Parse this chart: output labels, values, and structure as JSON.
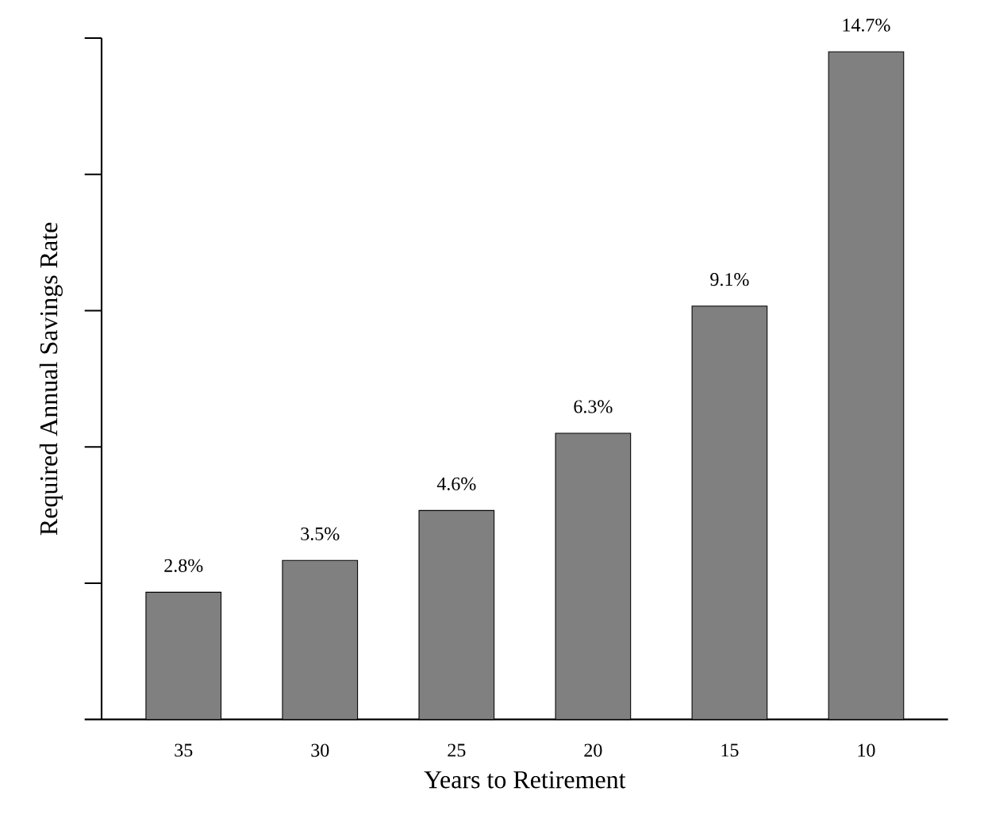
{
  "chart_data": {
    "type": "bar",
    "xlabel": "Years to Retirement",
    "ylabel": "Required Annual Savings Rate",
    "categories": [
      "35",
      "30",
      "25",
      "20",
      "15",
      "10"
    ],
    "values": [
      2.8,
      3.5,
      4.6,
      6.3,
      9.1,
      14.7
    ],
    "value_labels": [
      "2.8%",
      "3.5%",
      "4.6%",
      "6.3%",
      "9.1%",
      "14.7%"
    ],
    "color": "#808080",
    "ylim": [
      0,
      15
    ],
    "yticks": [
      {
        "value": 0,
        "label": null
      },
      {
        "value": 3,
        "label": null
      },
      {
        "value": 6,
        "label": null
      },
      {
        "value": 9,
        "label": null
      },
      {
        "value": 12,
        "label": null
      },
      {
        "value": 15,
        "label": null
      }
    ],
    "tick_labels": "x",
    "grid": false
  }
}
